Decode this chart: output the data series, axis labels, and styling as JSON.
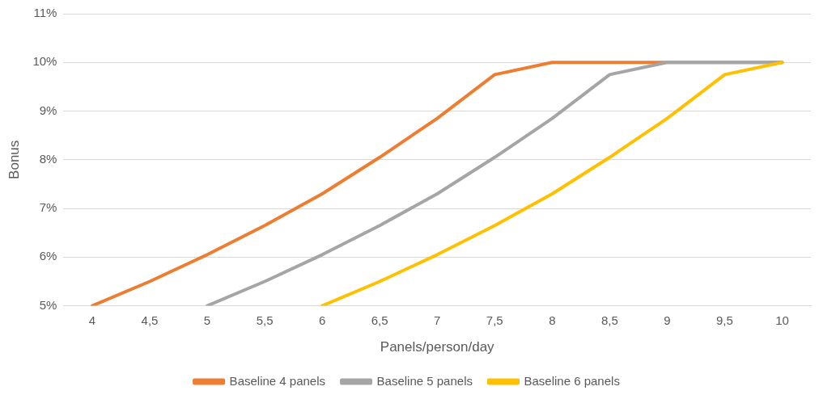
{
  "chart_data": {
    "type": "line",
    "xlabel": "Panels/person/day",
    "ylabel": "Bonus",
    "categories": [
      "4",
      "4,5",
      "5",
      "5,5",
      "6",
      "6,5",
      "7",
      "7,5",
      "8",
      "8,5",
      "9",
      "9,5",
      "10"
    ],
    "series": [
      {
        "name": "Baseline 4 panels",
        "color": "#ed7d31",
        "values": [
          5,
          5.5,
          6.05,
          6.65,
          7.3,
          8.05,
          8.85,
          9.75,
          10,
          10,
          10,
          10,
          10
        ]
      },
      {
        "name": "Baseline 5 panels",
        "color": "#a5a5a5",
        "values": [
          null,
          null,
          5,
          5.5,
          6.05,
          6.65,
          7.3,
          8.05,
          8.85,
          9.75,
          10,
          10,
          10
        ]
      },
      {
        "name": "Baseline 6 panels",
        "color": "#ffc000",
        "values": [
          null,
          null,
          null,
          null,
          5,
          5.5,
          6.05,
          6.65,
          7.3,
          8.05,
          8.85,
          9.75,
          10
        ]
      }
    ],
    "ylim": [
      5,
      11
    ],
    "yticks": [
      {
        "value": 5,
        "label": "5%"
      },
      {
        "value": 6,
        "label": "6%"
      },
      {
        "value": 7,
        "label": "7%"
      },
      {
        "value": 8,
        "label": "8%"
      },
      {
        "value": 9,
        "label": "9%"
      },
      {
        "value": 10,
        "label": "10%"
      },
      {
        "value": 11,
        "label": "11%"
      }
    ],
    "grid": "y",
    "legend": "bottom",
    "marker": "none",
    "line_style": "solid"
  }
}
